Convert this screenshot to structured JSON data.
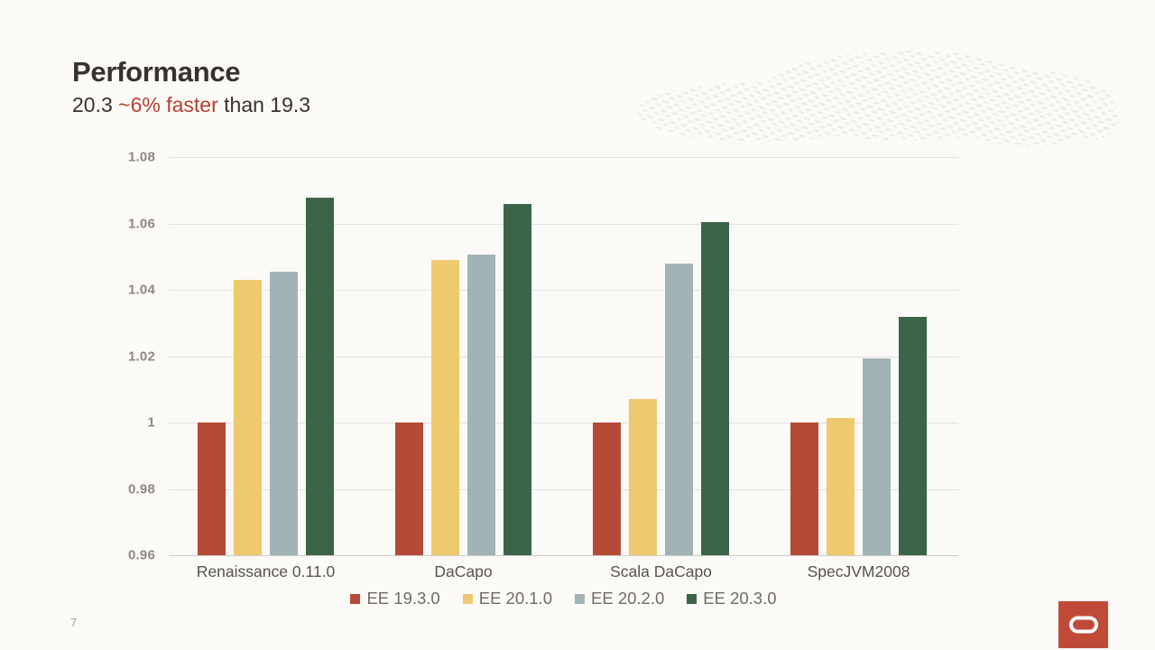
{
  "slide": {
    "title": "Performance",
    "subtitle_prefix": "20.3 ",
    "subtitle_highlight": "~6% faster",
    "subtitle_suffix": " than 19.3",
    "page_number": "7",
    "accent_red": "#b5402f",
    "background": "#fbfaf7"
  },
  "chart_data": {
    "type": "bar",
    "title": "",
    "xlabel": "",
    "ylabel": "",
    "categories": [
      "Renaissance 0.11.0",
      "DaCapo",
      "Scala DaCapo",
      "SpecJVM2008"
    ],
    "series": [
      {
        "name": "EE 19.3.0",
        "color": "#b54a36",
        "values": [
          1.0,
          1.0,
          1.0,
          1.0
        ]
      },
      {
        "name": "EE 20.1.0",
        "color": "#eec96d",
        "values": [
          1.043,
          1.049,
          1.007,
          1.0015
        ]
      },
      {
        "name": "EE 20.2.0",
        "color": "#a2b3b5",
        "values": [
          1.0455,
          1.0505,
          1.048,
          1.0193
        ]
      },
      {
        "name": "EE 20.3.0",
        "color": "#3b6449",
        "values": [
          1.0677,
          1.0658,
          1.0605,
          1.0318
        ]
      }
    ],
    "yticks": [
      0.96,
      0.98,
      1,
      1.02,
      1.04,
      1.06,
      1.08
    ],
    "ylim": [
      0.96,
      1.08
    ],
    "grid": true,
    "legend_position": "bottom"
  },
  "logo": {
    "brand": "oracle",
    "color": "#c04a38"
  }
}
